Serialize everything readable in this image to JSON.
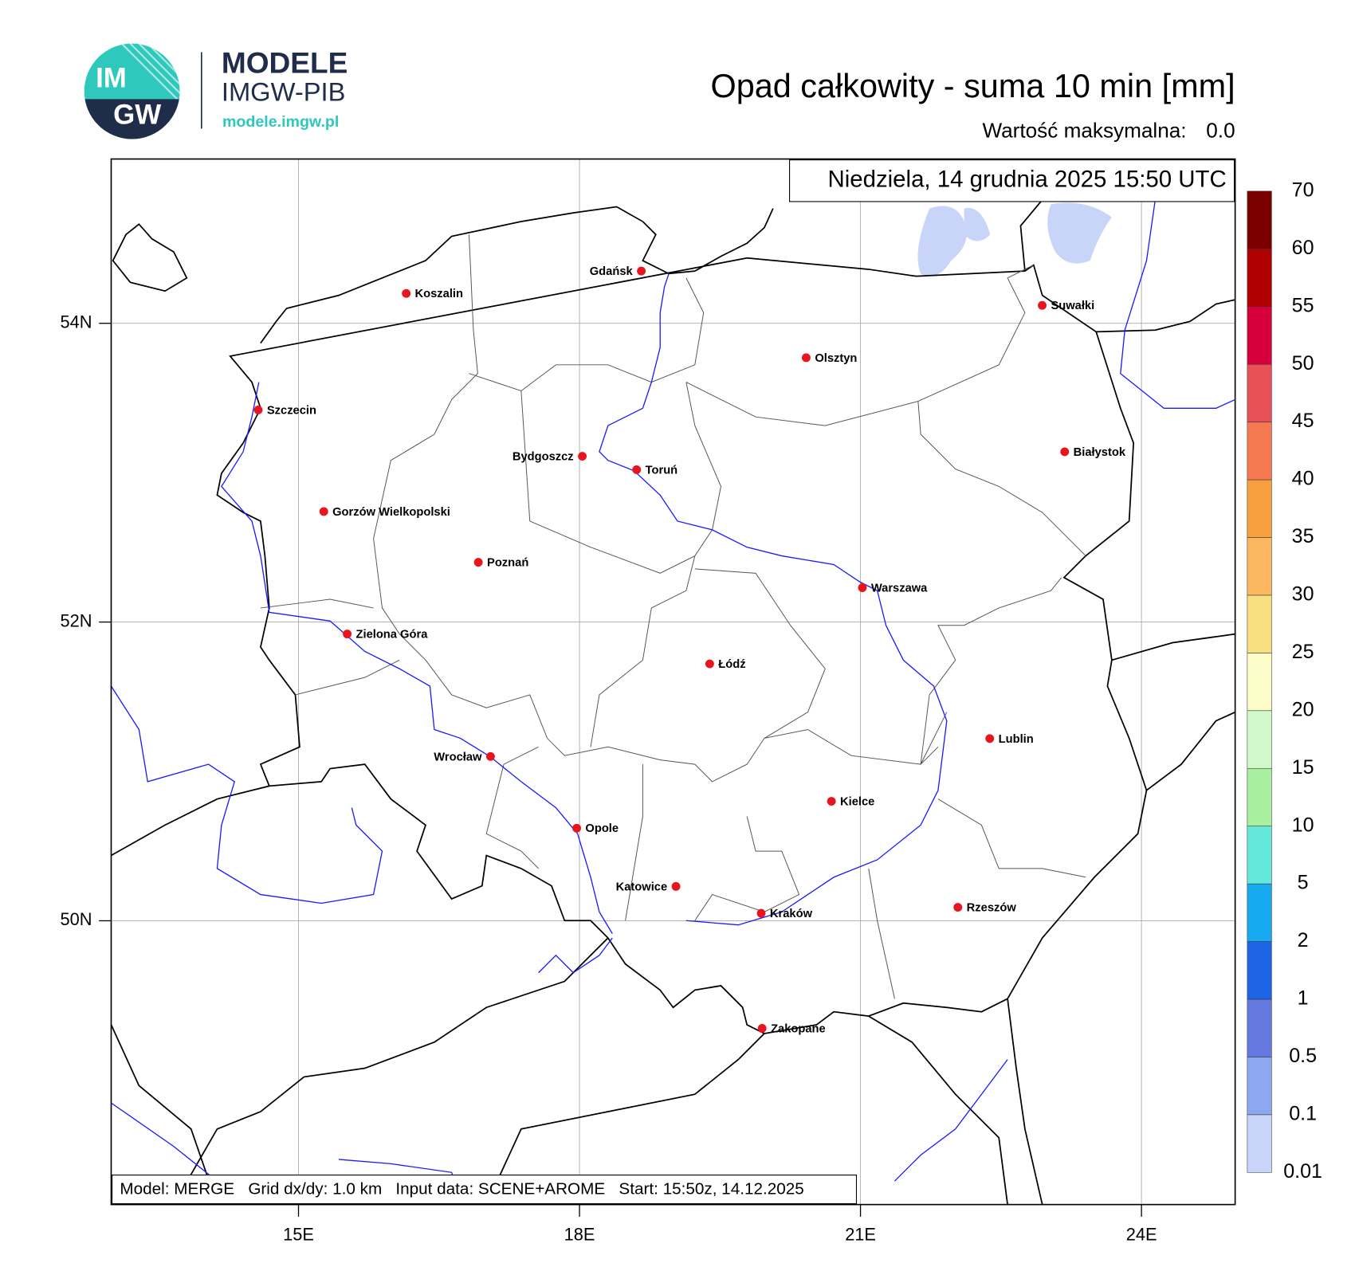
{
  "logo": {
    "mark_top": "IM",
    "mark_bottom": "GW",
    "name": "MODELE",
    "org": "IMGW-PIB",
    "url": "modele.imgw.pl"
  },
  "title": "Opad całkowity - suma 10 min [mm]",
  "max_value": {
    "label": "Wartość maksymalna:",
    "value": "0.0"
  },
  "valid_time": "Niedziela, 14 grudnia 2025 15:50 UTC",
  "footer": "Model: MERGE   Grid dx/dy: 1.0 km   Input data: SCENE+AROME   Start: 15:50z, 14.12.2025",
  "map": {
    "xlim": [
      13,
      25
    ],
    "ylim": [
      48.1,
      55.1
    ],
    "xticks": [
      {
        "value": 15,
        "label": "15E"
      },
      {
        "value": 18,
        "label": "18E"
      },
      {
        "value": 21,
        "label": "21E"
      },
      {
        "value": 24,
        "label": "24E"
      }
    ],
    "yticks": [
      {
        "value": 54,
        "label": "54N"
      },
      {
        "value": 52,
        "label": "52N"
      },
      {
        "value": 50,
        "label": "50N"
      }
    ],
    "grid": true,
    "city_color": "#e8141e",
    "cities": [
      {
        "name": "Gdańsk",
        "lon": 18.66,
        "lat": 54.35
      },
      {
        "name": "Koszalin",
        "lon": 16.15,
        "lat": 54.2
      },
      {
        "name": "Suwałki",
        "lon": 22.94,
        "lat": 54.12
      },
      {
        "name": "Olsztyn",
        "lon": 20.42,
        "lat": 53.77
      },
      {
        "name": "Szczecin",
        "lon": 14.57,
        "lat": 53.42
      },
      {
        "name": "Bydgoszcz",
        "lon": 18.03,
        "lat": 53.11
      },
      {
        "name": "Toruń",
        "lon": 18.61,
        "lat": 53.02
      },
      {
        "name": "Białystok",
        "lon": 23.18,
        "lat": 53.14
      },
      {
        "name": "Gorzów Wielkopolski",
        "lon": 15.27,
        "lat": 52.74
      },
      {
        "name": "Poznań",
        "lon": 16.92,
        "lat": 52.4
      },
      {
        "name": "Warszawa",
        "lon": 21.02,
        "lat": 52.23
      },
      {
        "name": "Zielona Góra",
        "lon": 15.52,
        "lat": 51.92
      },
      {
        "name": "Łódź",
        "lon": 19.39,
        "lat": 51.72
      },
      {
        "name": "Lublin",
        "lon": 22.38,
        "lat": 51.22
      },
      {
        "name": "Wrocław",
        "lon": 17.05,
        "lat": 51.1
      },
      {
        "name": "Kielce",
        "lon": 20.69,
        "lat": 50.8
      },
      {
        "name": "Opole",
        "lon": 17.97,
        "lat": 50.62
      },
      {
        "name": "Katowice",
        "lon": 19.03,
        "lat": 50.23
      },
      {
        "name": "Kraków",
        "lon": 19.94,
        "lat": 50.05
      },
      {
        "name": "Rzeszów",
        "lon": 22.04,
        "lat": 50.09
      },
      {
        "name": "Zakopane",
        "lon": 19.95,
        "lat": 49.28
      }
    ]
  },
  "colorbar": {
    "levels": [
      0.01,
      0.1,
      0.5,
      1,
      2,
      5,
      10,
      15,
      20,
      25,
      30,
      35,
      40,
      45,
      50,
      55,
      60,
      70
    ],
    "colors": [
      "#c8d4f8",
      "#8ca8f0",
      "#6478e0",
      "#1e64e6",
      "#18aaf0",
      "#64e8dc",
      "#a8f0a0",
      "#d0f8c8",
      "#fcfcc8",
      "#f8e080",
      "#fbb860",
      "#f8a040",
      "#f47850",
      "#e85058",
      "#d8003c",
      "#b00000",
      "#7a0000"
    ]
  }
}
